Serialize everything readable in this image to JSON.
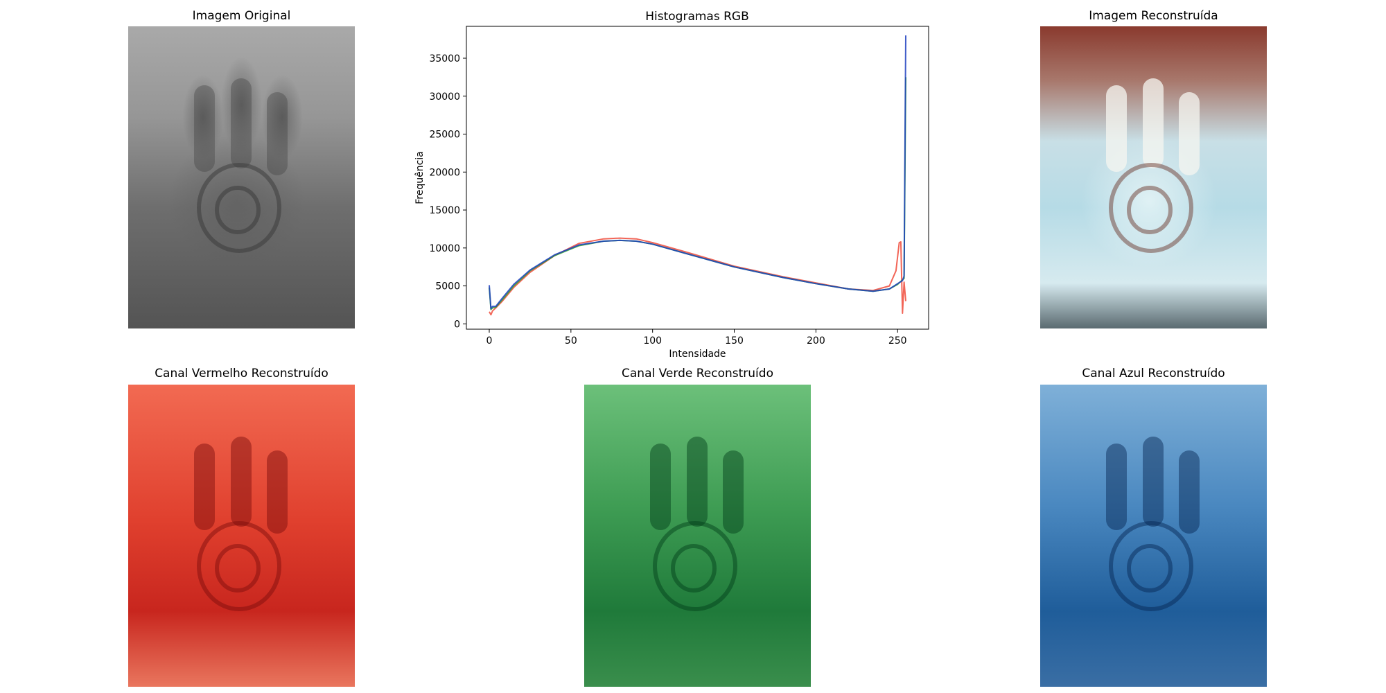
{
  "panels": {
    "original": {
      "title": "Imagem Original"
    },
    "reconstructed": {
      "title": "Imagem Reconstruída"
    },
    "red": {
      "title": "Canal Vermelho Reconstruído"
    },
    "green": {
      "title": "Canal Verde Reconstruído"
    },
    "blue": {
      "title": "Canal Azul Reconstruído"
    }
  },
  "colors": {
    "red_series": "#f04a3a",
    "green_series": "#2ca02c",
    "blue_series": "#1f3fbf"
  },
  "chart_data": {
    "type": "line",
    "title": "Histogramas RGB",
    "xlabel": "Intensidade",
    "ylabel": "Frequência",
    "xlim": [
      -14,
      269
    ],
    "ylim": [
      -700,
      39200
    ],
    "xticks": [
      0,
      50,
      100,
      150,
      200,
      250
    ],
    "yticks": [
      0,
      5000,
      10000,
      15000,
      20000,
      25000,
      30000,
      35000
    ],
    "grid": false,
    "series": [
      {
        "color": "#f04a3a",
        "x": [
          0,
          1,
          2,
          4,
          8,
          15,
          25,
          40,
          55,
          70,
          80,
          90,
          100,
          120,
          150,
          180,
          200,
          220,
          235,
          245,
          249,
          251,
          252,
          253,
          254,
          255
        ],
        "y": [
          1600,
          1200,
          1700,
          2100,
          3000,
          4800,
          6800,
          9000,
          10600,
          11200,
          11300,
          11200,
          10700,
          9500,
          7600,
          6200,
          5400,
          4600,
          4400,
          5000,
          7000,
          10700,
          10800,
          1400,
          5500,
          3000
        ]
      },
      {
        "color": "#2ca02c",
        "x": [
          0,
          1,
          2,
          4,
          8,
          15,
          25,
          40,
          55,
          70,
          80,
          90,
          100,
          120,
          150,
          180,
          200,
          220,
          235,
          245,
          250,
          253,
          254,
          255
        ],
        "y": [
          4800,
          1900,
          2100,
          2200,
          3200,
          5000,
          7000,
          9000,
          10300,
          10900,
          11000,
          10900,
          10500,
          9300,
          7500,
          6100,
          5300,
          4600,
          4300,
          4600,
          5200,
          5800,
          6000,
          32500
        ]
      },
      {
        "color": "#1f3fbf",
        "x": [
          0,
          1,
          2,
          4,
          8,
          15,
          25,
          40,
          55,
          70,
          80,
          90,
          100,
          120,
          150,
          180,
          200,
          220,
          235,
          245,
          250,
          253,
          254,
          255
        ],
        "y": [
          5100,
          2000,
          2300,
          2300,
          3400,
          5200,
          7100,
          9100,
          10400,
          10900,
          11000,
          10900,
          10500,
          9300,
          7500,
          6100,
          5300,
          4600,
          4300,
          4600,
          5300,
          5700,
          6300,
          38000
        ]
      }
    ]
  }
}
